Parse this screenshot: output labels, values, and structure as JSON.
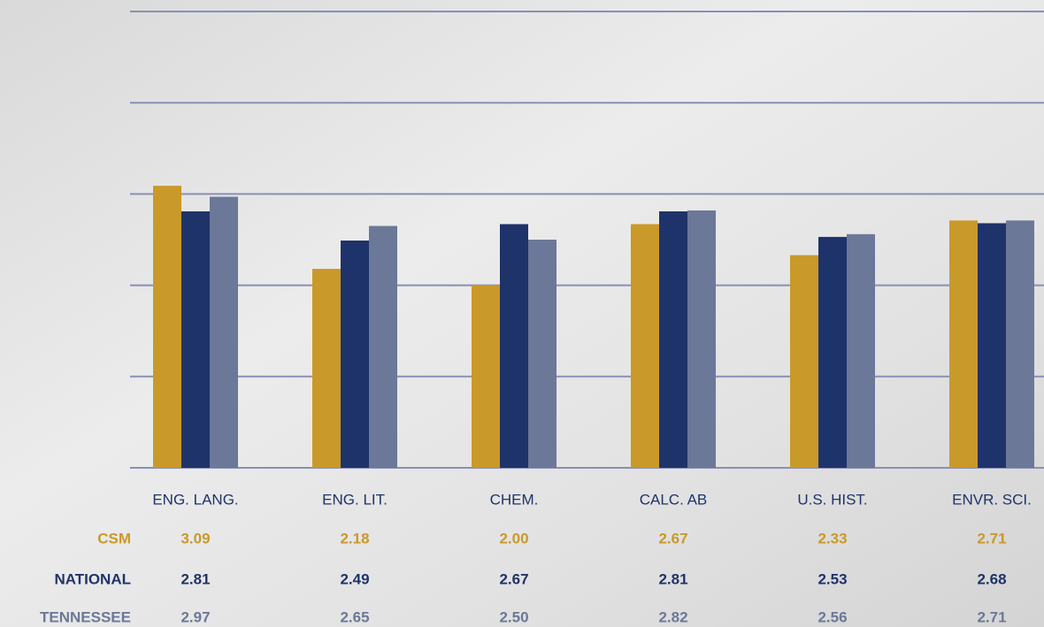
{
  "chart_data": {
    "type": "bar",
    "categories": [
      "ENG. LANG.",
      "ENG. LIT.",
      "CHEM.",
      "CALC. AB",
      "U.S. HIST.",
      "ENVR. SCI."
    ],
    "series": [
      {
        "name": "CSM",
        "color": "#c9992a",
        "values": [
          3.09,
          2.18,
          2.0,
          2.67,
          2.33,
          2.71
        ],
        "value_labels": [
          "3.09",
          "2.18",
          "2.00",
          "2.67",
          "2.33",
          "2.71"
        ]
      },
      {
        "name": "NATIONAL",
        "color": "#1f336b",
        "values": [
          2.81,
          2.49,
          2.67,
          2.81,
          2.53,
          2.68
        ],
        "value_labels": [
          "2.81",
          "2.49",
          "2.67",
          "2.81",
          "2.53",
          "2.68"
        ]
      },
      {
        "name": "TENNESSEE",
        "color": "#6b7898",
        "values": [
          2.97,
          2.65,
          2.5,
          2.82,
          2.56,
          2.71
        ],
        "value_labels": [
          "2.97",
          "2.65",
          "2.50",
          "2.82",
          "2.56",
          "2.71"
        ]
      }
    ],
    "ylim": [
      0,
      5
    ],
    "yticks": [
      0,
      1,
      2,
      3,
      4,
      5
    ],
    "grid": true
  }
}
